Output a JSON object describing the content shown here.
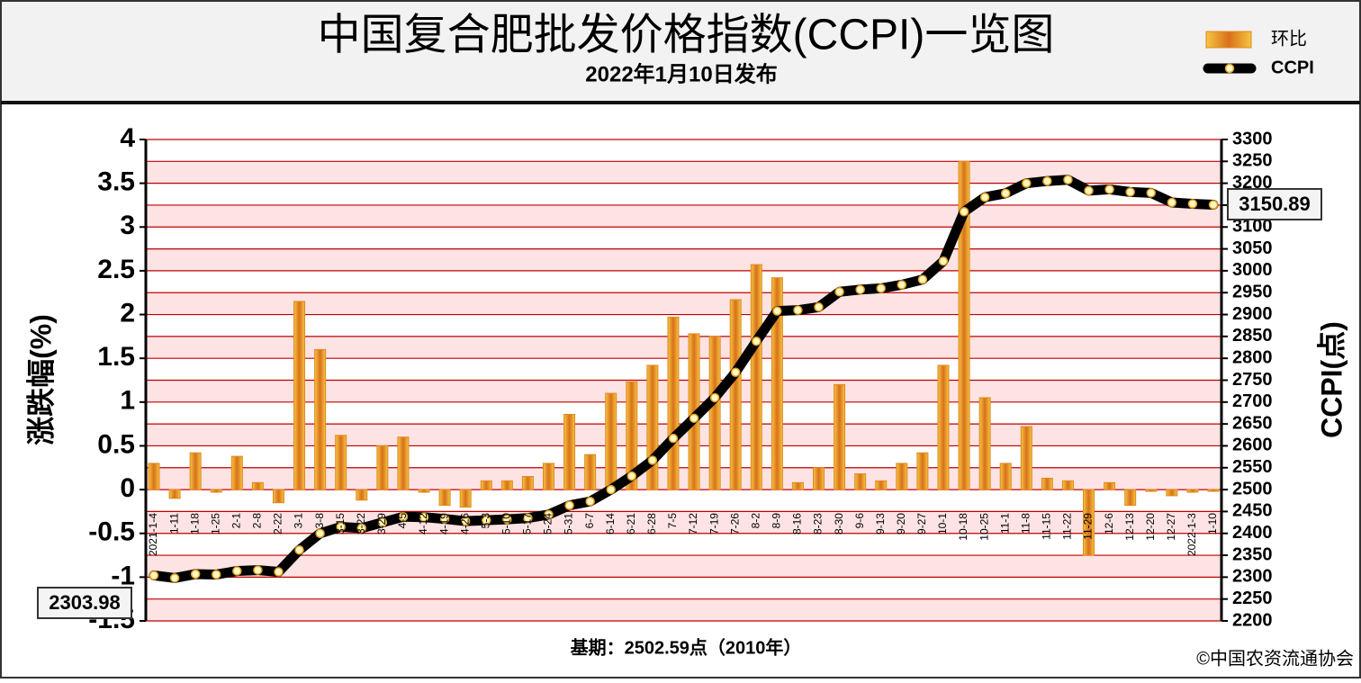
{
  "chart_data": {
    "type": "bar",
    "title": "中国复合肥批发价格指数(CCPI)一览图",
    "subtitle": "2022年1月10日发布",
    "y_label": "涨跌幅(%)",
    "y2_label": "CCPI(点)",
    "footnote": "基期：2502.59点（2010年）",
    "source": "©中国农资流通协会",
    "categories": [
      "2021-1-4",
      "1-11",
      "1-18",
      "1-25",
      "2-1",
      "2-8",
      "2-22",
      "3-1",
      "3-8",
      "3-15",
      "3-22",
      "3-29",
      "4-5",
      "4-12",
      "4-19",
      "4-26",
      "5-3",
      "5-10",
      "5-17",
      "5-24",
      "5-31",
      "6-7",
      "6-14",
      "6-21",
      "6-28",
      "7-5",
      "7-12",
      "7-19",
      "7-26",
      "8-2",
      "8-9",
      "8-16",
      "8-23",
      "8-30",
      "9-6",
      "9-13",
      "9-20",
      "9-27",
      "10-1",
      "10-18",
      "10-25",
      "11-1",
      "11-8",
      "11-15",
      "11-22",
      "11-29",
      "12-6",
      "12-13",
      "12-20",
      "12-27",
      "2022-1-3",
      "1-10"
    ],
    "series": [
      {
        "name": "环比",
        "type": "bar",
        "axis": "y",
        "color": "#e08a1e",
        "values": [
          0.3,
          -0.1,
          0.42,
          -0.03,
          0.38,
          0.08,
          -0.15,
          2.15,
          1.6,
          0.62,
          -0.12,
          0.5,
          0.6,
          -0.03,
          -0.18,
          -0.2,
          0.1,
          0.1,
          0.15,
          0.3,
          0.86,
          0.4,
          1.1,
          1.23,
          1.42,
          1.97,
          1.78,
          1.75,
          2.17,
          2.57,
          2.42,
          0.08,
          0.25,
          1.2,
          0.18,
          0.1,
          0.3,
          0.42,
          1.42,
          3.75,
          1.05,
          0.3,
          0.72,
          0.13,
          0.1,
          -0.75,
          0.08,
          -0.18,
          -0.02,
          -0.07,
          -0.03,
          -0.02
        ]
      },
      {
        "name": "CCPI",
        "type": "line",
        "axis": "y2",
        "color": "#000000",
        "values": [
          2303.98,
          2298,
          2307,
          2306,
          2314,
          2316,
          2312,
          2362,
          2400,
          2415,
          2412,
          2425,
          2438,
          2437,
          2433,
          2428,
          2430,
          2432,
          2435,
          2443,
          2464,
          2473,
          2500,
          2531,
          2567,
          2617,
          2663,
          2710,
          2768,
          2839,
          2908,
          2910,
          2917,
          2952,
          2957,
          2960,
          2968,
          2980,
          3022,
          3135,
          3168,
          3177,
          3200,
          3205,
          3208,
          3183,
          3186,
          3180,
          3178,
          3156,
          3153,
          3150.89
        ]
      }
    ],
    "ylim": [
      -1.5,
      4
    ],
    "yticks": [
      -1.5,
      -1,
      -0.5,
      0,
      0.5,
      1,
      1.5,
      2,
      2.5,
      3,
      3.5,
      4
    ],
    "y2lim": [
      2200,
      3300
    ],
    "y2ticks": [
      2200,
      2250,
      2300,
      2350,
      2400,
      2450,
      2500,
      2550,
      2600,
      2650,
      2700,
      2750,
      2800,
      2850,
      2900,
      2950,
      3000,
      3050,
      3100,
      3150,
      3200,
      3250,
      3300
    ],
    "grid": true
  }
}
